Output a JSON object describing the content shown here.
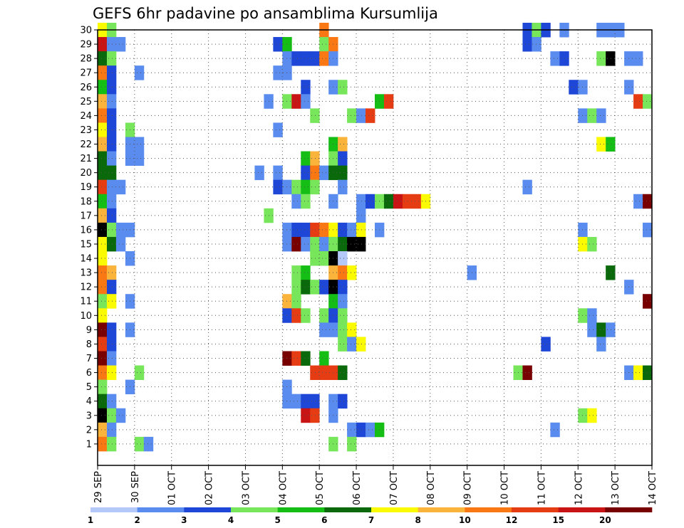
{
  "chart_data": {
    "type": "heatmap",
    "title": "GEFS 6hr padavine po ansamblima Kursumlija",
    "y_members": [
      1,
      2,
      3,
      4,
      5,
      6,
      7,
      8,
      9,
      10,
      11,
      12,
      13,
      14,
      15,
      16,
      17,
      18,
      19,
      20,
      21,
      22,
      23,
      24,
      25,
      26,
      27,
      28,
      29,
      30
    ],
    "x_tick_labels": [
      "29 SEP",
      "30 SEP",
      "01 OCT",
      "02 OCT",
      "03 OCT",
      "04 OCT",
      "05 OCT",
      "06 OCT",
      "07 OCT",
      "08 OCT",
      "09 OCT",
      "10 OCT",
      "11 OCT",
      "12 OCT",
      "13 OCT",
      "14 OCT"
    ],
    "x_steps_total": 60,
    "x_steps_per_day": 4,
    "grid": true,
    "colorbar": {
      "levels": [
        "1",
        "2",
        "3",
        "4",
        "5",
        "6",
        "7",
        "8",
        "10",
        "12",
        "15",
        "20"
      ],
      "colors": [
        "#b4c8fa",
        "#5a8cf0",
        "#1e46d7",
        "#78e65a",
        "#14be14",
        "#0a690a",
        "#fafa00",
        "#fab43c",
        "#fa7814",
        "#e63c14",
        "#c81414",
        "#780000"
      ]
    },
    "cells": [
      [
        30,
        0,
        6
      ],
      [
        30,
        1,
        3
      ],
      [
        30,
        24,
        8
      ],
      [
        30,
        46,
        2
      ],
      [
        30,
        47,
        3
      ],
      [
        30,
        48,
        2
      ],
      [
        30,
        50,
        1
      ],
      [
        30,
        54,
        1
      ],
      [
        30,
        55,
        1
      ],
      [
        30,
        56,
        1
      ],
      [
        29,
        0,
        10
      ],
      [
        29,
        1,
        1
      ],
      [
        29,
        2,
        1
      ],
      [
        29,
        19,
        2
      ],
      [
        29,
        20,
        4
      ],
      [
        29,
        24,
        3
      ],
      [
        29,
        25,
        8
      ],
      [
        29,
        46,
        2
      ],
      [
        29,
        47,
        1
      ],
      [
        28,
        0,
        5
      ],
      [
        28,
        1,
        3
      ],
      [
        28,
        20,
        1
      ],
      [
        28,
        21,
        2
      ],
      [
        28,
        22,
        2
      ],
      [
        28,
        23,
        2
      ],
      [
        28,
        24,
        8
      ],
      [
        28,
        25,
        1
      ],
      [
        28,
        49,
        1
      ],
      [
        28,
        50,
        2
      ],
      [
        28,
        54,
        3
      ],
      [
        28,
        55,
        12
      ],
      [
        28,
        57,
        1
      ],
      [
        28,
        58,
        1
      ],
      [
        27,
        0,
        8
      ],
      [
        27,
        1,
        2
      ],
      [
        27,
        4,
        1
      ],
      [
        27,
        19,
        1
      ],
      [
        27,
        20,
        1
      ],
      [
        26,
        0,
        4
      ],
      [
        26,
        1,
        2
      ],
      [
        26,
        22,
        2
      ],
      [
        26,
        25,
        1
      ],
      [
        26,
        26,
        3
      ],
      [
        26,
        51,
        2
      ],
      [
        26,
        52,
        1
      ],
      [
        26,
        57,
        1
      ],
      [
        25,
        0,
        7
      ],
      [
        25,
        1,
        1
      ],
      [
        25,
        18,
        1
      ],
      [
        25,
        20,
        3
      ],
      [
        25,
        21,
        10
      ],
      [
        25,
        22,
        1
      ],
      [
        25,
        30,
        4
      ],
      [
        25,
        31,
        9
      ],
      [
        25,
        58,
        9
      ],
      [
        25,
        59,
        3
      ],
      [
        24,
        0,
        8
      ],
      [
        24,
        1,
        2
      ],
      [
        24,
        23,
        3
      ],
      [
        24,
        27,
        3
      ],
      [
        24,
        28,
        1
      ],
      [
        24,
        29,
        9
      ],
      [
        24,
        52,
        1
      ],
      [
        24,
        53,
        3
      ],
      [
        24,
        54,
        1
      ],
      [
        23,
        0,
        6
      ],
      [
        23,
        1,
        2
      ],
      [
        23,
        3,
        3
      ],
      [
        23,
        19,
        1
      ],
      [
        22,
        0,
        7
      ],
      [
        22,
        1,
        2
      ],
      [
        22,
        3,
        1
      ],
      [
        22,
        4,
        1
      ],
      [
        22,
        25,
        4
      ],
      [
        22,
        26,
        7
      ],
      [
        22,
        54,
        6
      ],
      [
        22,
        55,
        4
      ],
      [
        21,
        0,
        5
      ],
      [
        21,
        1,
        1
      ],
      [
        21,
        3,
        1
      ],
      [
        21,
        4,
        1
      ],
      [
        21,
        22,
        4
      ],
      [
        21,
        23,
        7
      ],
      [
        21,
        25,
        3
      ],
      [
        21,
        26,
        2
      ],
      [
        20,
        0,
        5
      ],
      [
        20,
        1,
        5
      ],
      [
        20,
        17,
        1
      ],
      [
        20,
        19,
        1
      ],
      [
        20,
        22,
        2
      ],
      [
        20,
        23,
        8
      ],
      [
        20,
        24,
        1
      ],
      [
        20,
        25,
        5
      ],
      [
        20,
        26,
        5
      ],
      [
        19,
        0,
        9
      ],
      [
        19,
        1,
        1
      ],
      [
        19,
        2,
        1
      ],
      [
        19,
        19,
        2
      ],
      [
        19,
        20,
        1
      ],
      [
        19,
        21,
        3
      ],
      [
        19,
        22,
        4
      ],
      [
        19,
        23,
        3
      ],
      [
        19,
        26,
        1
      ],
      [
        19,
        46,
        1
      ],
      [
        18,
        0,
        4
      ],
      [
        18,
        1,
        1
      ],
      [
        18,
        21,
        1
      ],
      [
        18,
        22,
        3
      ],
      [
        18,
        25,
        1
      ],
      [
        18,
        28,
        1
      ],
      [
        18,
        29,
        2
      ],
      [
        18,
        30,
        3
      ],
      [
        18,
        31,
        5
      ],
      [
        18,
        32,
        10
      ],
      [
        18,
        33,
        9
      ],
      [
        18,
        34,
        9
      ],
      [
        18,
        35,
        6
      ],
      [
        18,
        58,
        1
      ],
      [
        18,
        59,
        11
      ],
      [
        17,
        0,
        7
      ],
      [
        17,
        1,
        2
      ],
      [
        17,
        18,
        3
      ],
      [
        17,
        28,
        1
      ],
      [
        16,
        0,
        12
      ],
      [
        16,
        1,
        3
      ],
      [
        16,
        2,
        1
      ],
      [
        16,
        3,
        1
      ],
      [
        16,
        20,
        1
      ],
      [
        16,
        21,
        2
      ],
      [
        16,
        22,
        2
      ],
      [
        16,
        23,
        9
      ],
      [
        16,
        24,
        8
      ],
      [
        16,
        25,
        6
      ],
      [
        16,
        26,
        2
      ],
      [
        16,
        27,
        1
      ],
      [
        16,
        28,
        6
      ],
      [
        16,
        30,
        1
      ],
      [
        16,
        52,
        1
      ],
      [
        16,
        59,
        1
      ],
      [
        15,
        0,
        6
      ],
      [
        15,
        1,
        5
      ],
      [
        15,
        2,
        1
      ],
      [
        15,
        20,
        1
      ],
      [
        15,
        21,
        11
      ],
      [
        15,
        22,
        1
      ],
      [
        15,
        23,
        3
      ],
      [
        15,
        24,
        1
      ],
      [
        15,
        25,
        3
      ],
      [
        15,
        26,
        5
      ],
      [
        15,
        27,
        12
      ],
      [
        15,
        28,
        12
      ],
      [
        15,
        52,
        6
      ],
      [
        15,
        53,
        3
      ],
      [
        14,
        0,
        6
      ],
      [
        14,
        3,
        1
      ],
      [
        14,
        23,
        3
      ],
      [
        14,
        24,
        3
      ],
      [
        14,
        25,
        12
      ],
      [
        14,
        26,
        0
      ],
      [
        13,
        0,
        8
      ],
      [
        13,
        1,
        7
      ],
      [
        13,
        21,
        3
      ],
      [
        13,
        22,
        4
      ],
      [
        13,
        25,
        7
      ],
      [
        13,
        26,
        8
      ],
      [
        13,
        27,
        6
      ],
      [
        13,
        40,
        1
      ],
      [
        13,
        55,
        5
      ],
      [
        12,
        0,
        8
      ],
      [
        12,
        1,
        2
      ],
      [
        12,
        21,
        3
      ],
      [
        12,
        22,
        5
      ],
      [
        12,
        23,
        3
      ],
      [
        12,
        24,
        2
      ],
      [
        12,
        25,
        12
      ],
      [
        12,
        26,
        2
      ],
      [
        12,
        57,
        1
      ],
      [
        11,
        0,
        3
      ],
      [
        11,
        1,
        6
      ],
      [
        11,
        3,
        1
      ],
      [
        11,
        20,
        7
      ],
      [
        11,
        21,
        3
      ],
      [
        11,
        25,
        4
      ],
      [
        11,
        26,
        1
      ],
      [
        11,
        59,
        11
      ],
      [
        10,
        0,
        6
      ],
      [
        10,
        20,
        2
      ],
      [
        10,
        21,
        9
      ],
      [
        10,
        22,
        3
      ],
      [
        10,
        24,
        3
      ],
      [
        10,
        25,
        2
      ],
      [
        10,
        26,
        3
      ],
      [
        10,
        52,
        3
      ],
      [
        10,
        53,
        1
      ],
      [
        9,
        0,
        11
      ],
      [
        9,
        1,
        2
      ],
      [
        9,
        3,
        1
      ],
      [
        9,
        24,
        1
      ],
      [
        9,
        25,
        1
      ],
      [
        9,
        26,
        3
      ],
      [
        9,
        27,
        6
      ],
      [
        9,
        53,
        1
      ],
      [
        9,
        54,
        5
      ],
      [
        9,
        55,
        1
      ],
      [
        8,
        0,
        9
      ],
      [
        8,
        1,
        2
      ],
      [
        8,
        26,
        3
      ],
      [
        8,
        27,
        1
      ],
      [
        8,
        28,
        6
      ],
      [
        8,
        48,
        2
      ],
      [
        8,
        54,
        1
      ],
      [
        7,
        0,
        11
      ],
      [
        7,
        1,
        1
      ],
      [
        7,
        20,
        11
      ],
      [
        7,
        21,
        9
      ],
      [
        7,
        22,
        5
      ],
      [
        7,
        24,
        4
      ],
      [
        6,
        0,
        8
      ],
      [
        6,
        1,
        6
      ],
      [
        6,
        4,
        3
      ],
      [
        6,
        23,
        9
      ],
      [
        6,
        24,
        9
      ],
      [
        6,
        25,
        9
      ],
      [
        6,
        26,
        5
      ],
      [
        6,
        45,
        3
      ],
      [
        6,
        46,
        11
      ],
      [
        6,
        57,
        1
      ],
      [
        6,
        58,
        6
      ],
      [
        6,
        59,
        5
      ],
      [
        5,
        0,
        3
      ],
      [
        5,
        3,
        1
      ],
      [
        5,
        20,
        1
      ],
      [
        4,
        0,
        5
      ],
      [
        4,
        1,
        1
      ],
      [
        4,
        20,
        1
      ],
      [
        4,
        21,
        1
      ],
      [
        4,
        22,
        2
      ],
      [
        4,
        23,
        2
      ],
      [
        4,
        25,
        1
      ],
      [
        4,
        26,
        2
      ],
      [
        3,
        0,
        12
      ],
      [
        3,
        1,
        3
      ],
      [
        3,
        2,
        1
      ],
      [
        3,
        22,
        10
      ],
      [
        3,
        23,
        9
      ],
      [
        3,
        25,
        1
      ],
      [
        3,
        52,
        3
      ],
      [
        3,
        53,
        6
      ],
      [
        2,
        0,
        7
      ],
      [
        2,
        1,
        1
      ],
      [
        2,
        27,
        1
      ],
      [
        2,
        28,
        2
      ],
      [
        2,
        29,
        1
      ],
      [
        2,
        30,
        4
      ],
      [
        2,
        49,
        1
      ],
      [
        1,
        0,
        8
      ],
      [
        1,
        1,
        3
      ],
      [
        1,
        4,
        3
      ],
      [
        1,
        5,
        1
      ],
      [
        1,
        25,
        3
      ],
      [
        1,
        27,
        3
      ]
    ]
  }
}
